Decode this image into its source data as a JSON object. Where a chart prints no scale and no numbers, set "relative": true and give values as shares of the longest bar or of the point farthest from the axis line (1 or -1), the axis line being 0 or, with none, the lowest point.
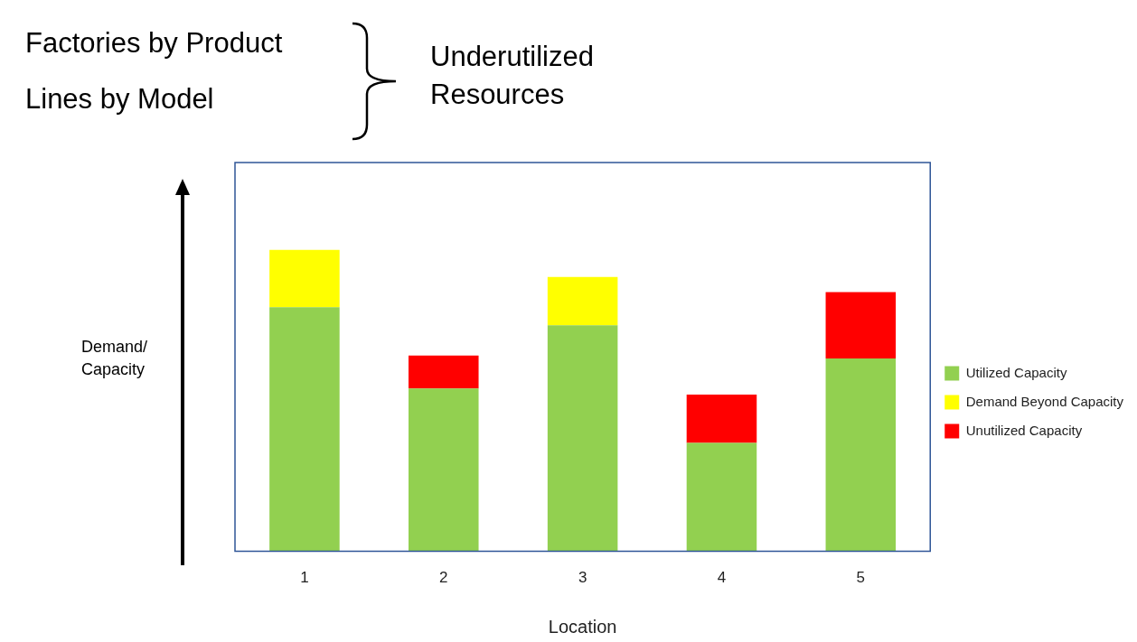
{
  "chart_data": {
    "type": "bar",
    "title": "Underutilized Resources",
    "annotations": [
      "Factories by Product",
      "Lines by Model",
      "Demand/ Capacity"
    ],
    "xlabel": "Location",
    "categories": [
      "1",
      "2",
      "3",
      "4",
      "5"
    ],
    "stacked": true,
    "relative": true,
    "legend": "right",
    "series": [
      {
        "name": "Utilized Capacity",
        "color": "#92d050",
        "values": [
          0.81,
          0.54,
          0.75,
          0.36,
          0.64
        ]
      },
      {
        "name": "Demand Beyond Capacity",
        "color": "#ffff00",
        "values": [
          0.19,
          null,
          0.16,
          null,
          null
        ]
      },
      {
        "name": "Unutilized Capacity",
        "color": "#ff0000",
        "values": [
          null,
          0.11,
          null,
          0.16,
          0.22
        ]
      }
    ]
  }
}
